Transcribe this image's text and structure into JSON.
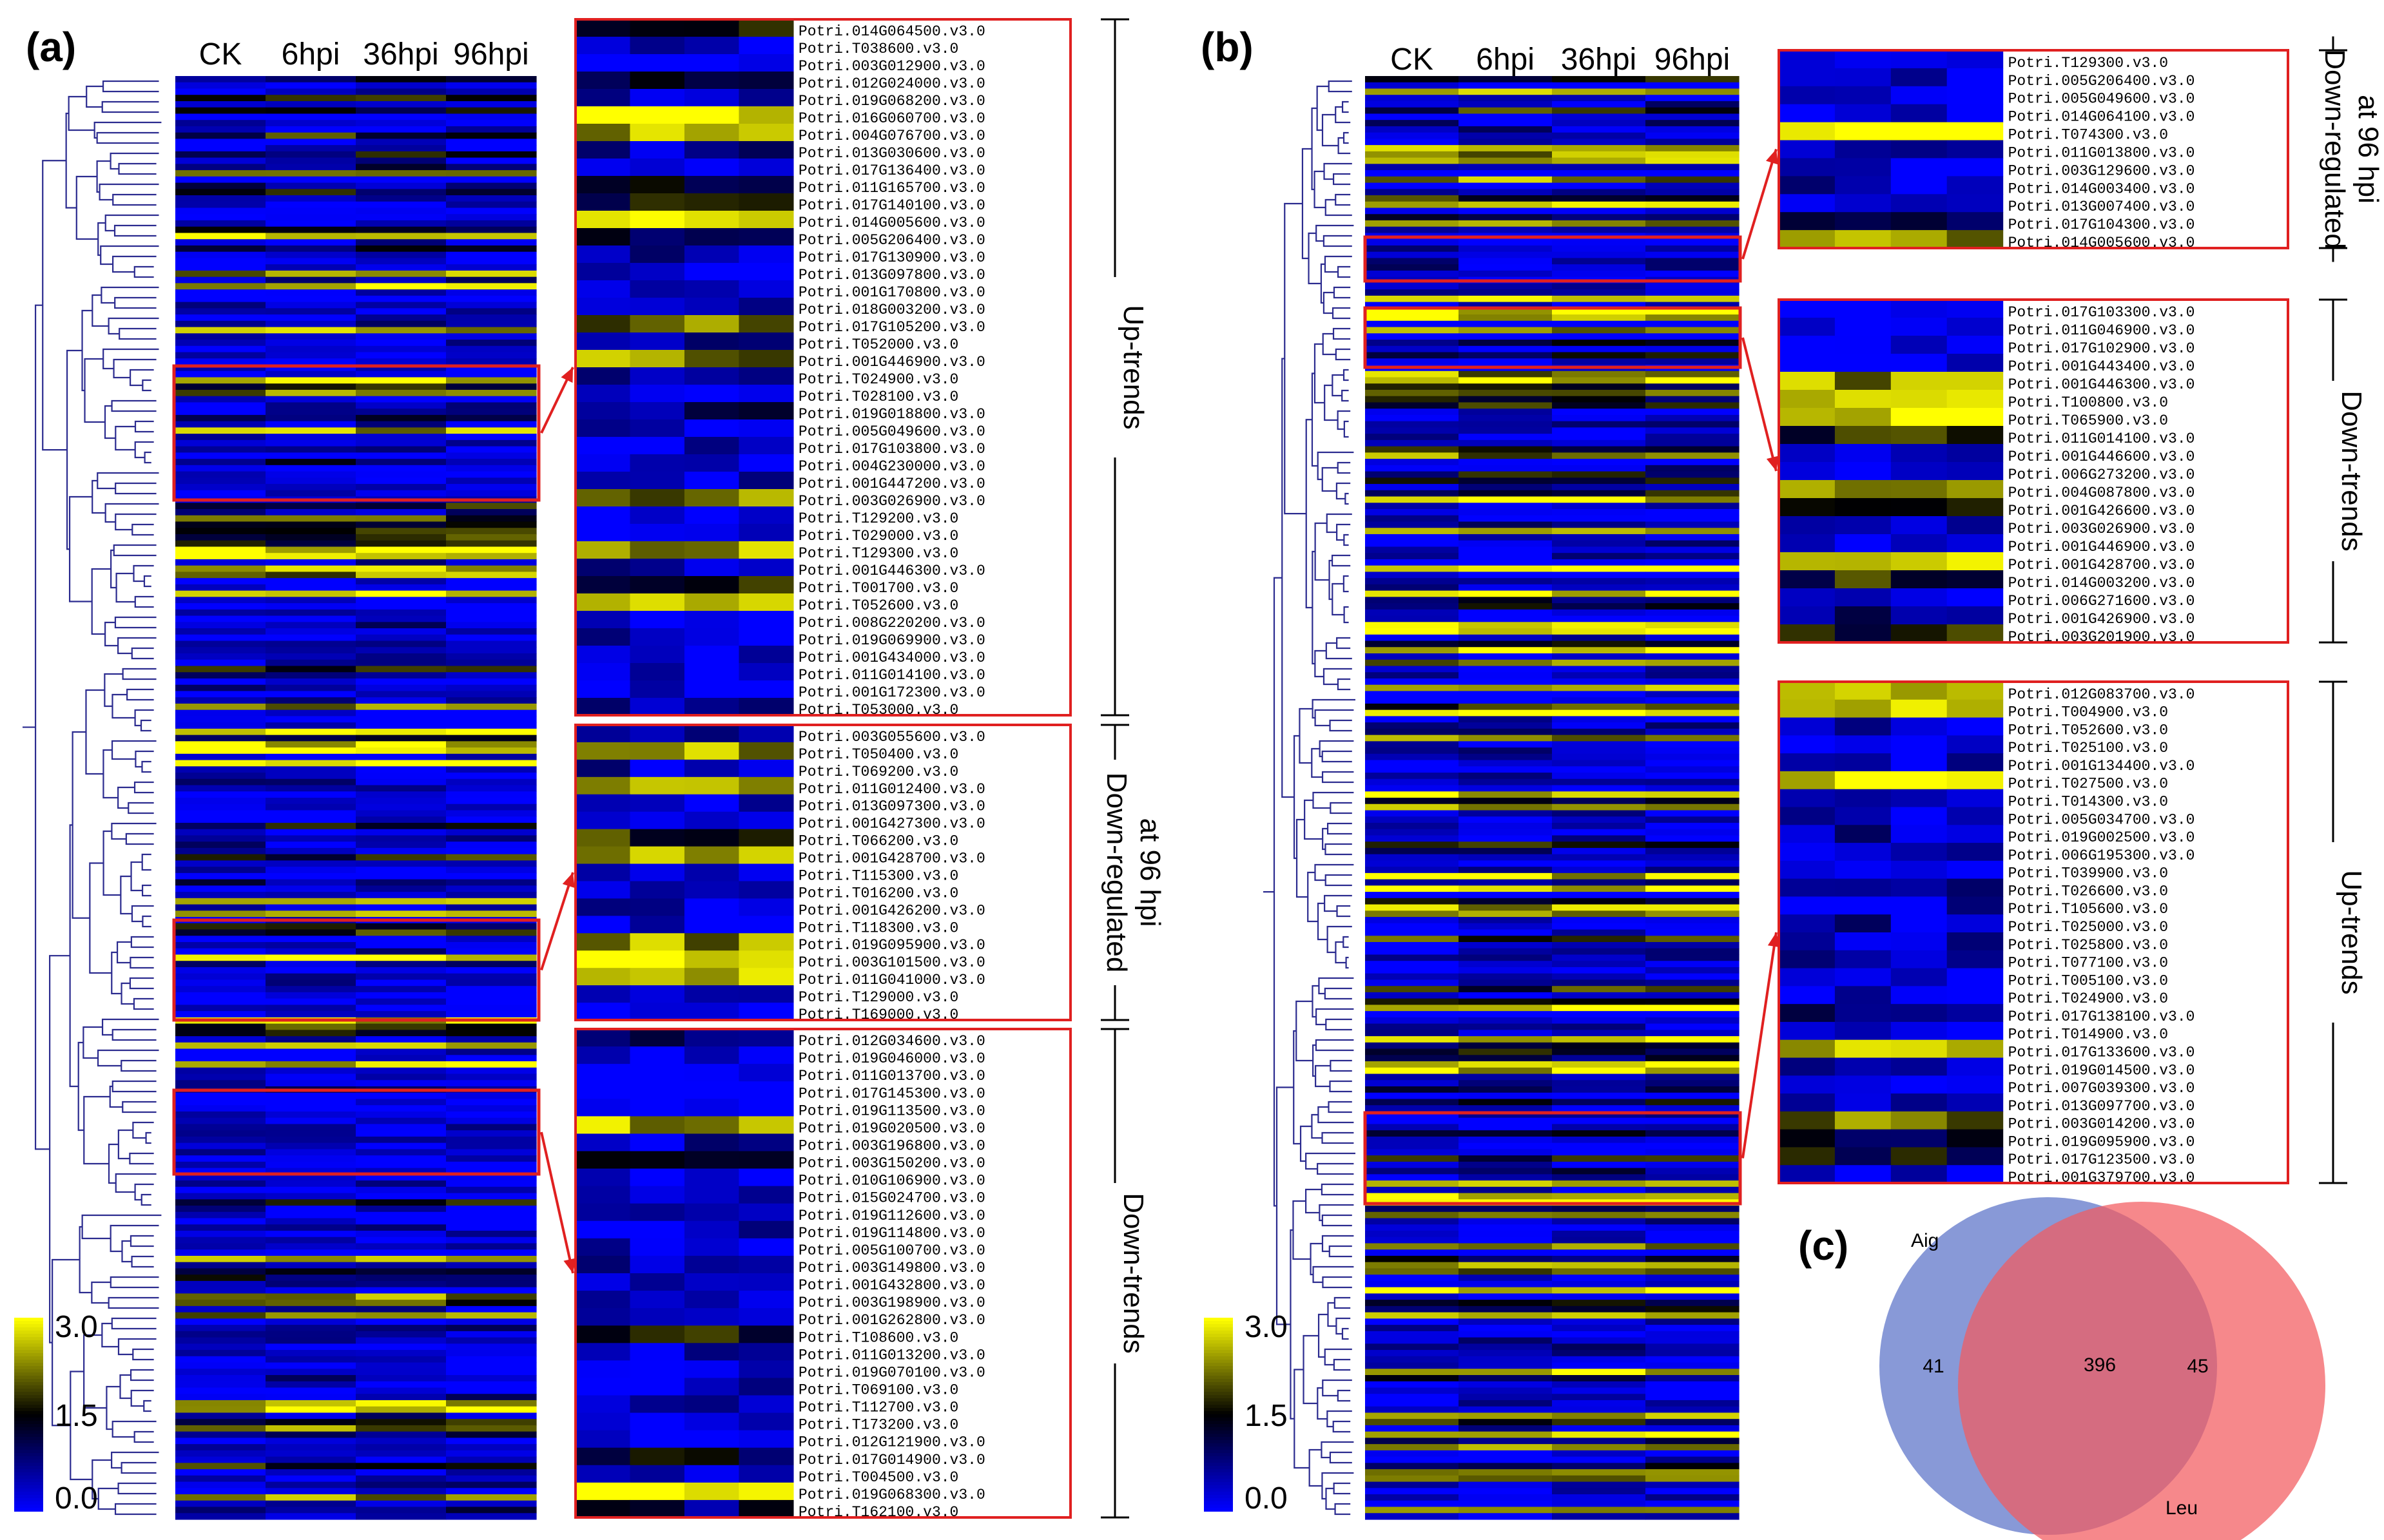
{
  "chart_data": [
    {
      "type": "heatmap",
      "panel": "(a)",
      "columns": [
        "CK",
        "6hpi",
        "36hpi",
        "96hpi"
      ],
      "colorbar": {
        "ticks": [
          "3.0",
          "1.5",
          "0.0"
        ],
        "colors": [
          "#0000ff",
          "#000000",
          "#ffff00"
        ]
      },
      "zooms": [
        {
          "label": "Up-trends",
          "genes": [
            "Potri.014G064500.v3.0",
            "Potri.T038600.v3.0",
            "Potri.003G012900.v3.0",
            "Potri.012G024000.v3.0",
            "Potri.019G068200.v3.0",
            "Potri.016G060700.v3.0",
            "Potri.004G076700.v3.0",
            "Potri.013G030600.v3.0",
            "Potri.017G136400.v3.0",
            "Potri.011G165700.v3.0",
            "Potri.017G140100.v3.0",
            "Potri.014G005600.v3.0",
            "Potri.005G206400.v3.0",
            "Potri.017G130900.v3.0",
            "Potri.013G097800.v3.0",
            "Potri.001G170800.v3.0",
            "Potri.018G003200.v3.0",
            "Potri.017G105200.v3.0",
            "Potri.T052000.v3.0",
            "Potri.001G446900.v3.0",
            "Potri.T024900.v3.0",
            "Potri.T028100.v3.0",
            "Potri.019G018800.v3.0",
            "Potri.005G049600.v3.0",
            "Potri.017G103800.v3.0",
            "Potri.004G230000.v3.0",
            "Potri.001G447200.v3.0",
            "Potri.003G026900.v3.0",
            "Potri.T129200.v3.0",
            "Potri.T029000.v3.0",
            "Potri.T129300.v3.0",
            "Potri.001G446300.v3.0",
            "Potri.T001700.v3.0",
            "Potri.T052600.v3.0",
            "Potri.008G220200.v3.0",
            "Potri.019G069900.v3.0",
            "Potri.001G434000.v3.0",
            "Potri.011G014100.v3.0",
            "Potri.001G172300.v3.0",
            "Potri.T053000.v3.0"
          ]
        },
        {
          "label": "Down-regulated at 96 hpi",
          "label_lines": [
            "Down-regulated",
            "at 96 hpi"
          ],
          "genes": [
            "Potri.003G055600.v3.0",
            "Potri.T050400.v3.0",
            "Potri.T069200.v3.0",
            "Potri.011G012400.v3.0",
            "Potri.013G097300.v3.0",
            "Potri.001G427300.v3.0",
            "Potri.T066200.v3.0",
            "Potri.001G428700.v3.0",
            "Potri.T115300.v3.0",
            "Potri.T016200.v3.0",
            "Potri.001G426200.v3.0",
            "Potri.T118300.v3.0",
            "Potri.019G095900.v3.0",
            "Potri.003G101500.v3.0",
            "Potri.011G041000.v3.0",
            "Potri.T129000.v3.0",
            "Potri.T169000.v3.0"
          ]
        },
        {
          "label": "Down-trends",
          "genes": [
            "Potri.012G034600.v3.0",
            "Potri.019G046000.v3.0",
            "Potri.011G013700.v3.0",
            "Potri.017G145300.v3.0",
            "Potri.019G113500.v3.0",
            "Potri.019G020500.v3.0",
            "Potri.003G196800.v3.0",
            "Potri.003G150200.v3.0",
            "Potri.010G106900.v3.0",
            "Potri.015G024700.v3.0",
            "Potri.019G112600.v3.0",
            "Potri.019G114800.v3.0",
            "Potri.005G100700.v3.0",
            "Potri.003G149800.v3.0",
            "Potri.001G432800.v3.0",
            "Potri.003G198900.v3.0",
            "Potri.001G262800.v3.0",
            "Potri.T108600.v3.0",
            "Potri.011G013200.v3.0",
            "Potri.019G070100.v3.0",
            "Potri.T069100.v3.0",
            "Potri.T112700.v3.0",
            "Potri.T173200.v3.0",
            "Potri.012G121900.v3.0",
            "Potri.017G014900.v3.0",
            "Potri.T004500.v3.0",
            "Potri.019G068300.v3.0",
            "Potri.T162100.v3.0"
          ]
        }
      ]
    },
    {
      "type": "heatmap",
      "panel": "(b)",
      "columns": [
        "CK",
        "6hpi",
        "36hpi",
        "96hpi"
      ],
      "colorbar": {
        "ticks": [
          "3.0",
          "1.5",
          "0.0"
        ],
        "colors": [
          "#0000ff",
          "#000000",
          "#ffff00"
        ]
      },
      "zooms": [
        {
          "label": "Down-regulated at 96 hpi",
          "label_lines": [
            "Down-regulated",
            "at 96 hpi"
          ],
          "genes": [
            "Potri.T129300.v3.0",
            "Potri.005G206400.v3.0",
            "Potri.005G049600.v3.0",
            "Potri.014G064100.v3.0",
            "Potri.T074300.v3.0",
            "Potri.011G013800.v3.0",
            "Potri.003G129600.v3.0",
            "Potri.014G003400.v3.0",
            "Potri.013G007400.v3.0",
            "Potri.017G104300.v3.0",
            "Potri.014G005600.v3.0"
          ]
        },
        {
          "label": "Down-trends",
          "genes": [
            "Potri.017G103300.v3.0",
            "Potri.011G046900.v3.0",
            "Potri.017G102900.v3.0",
            "Potri.001G443400.v3.0",
            "Potri.001G446300.v3.0",
            "Potri.T100800.v3.0",
            "Potri.T065900.v3.0",
            "Potri.011G014100.v3.0",
            "Potri.001G446600.v3.0",
            "Potri.006G273200.v3.0",
            "Potri.004G087800.v3.0",
            "Potri.001G426600.v3.0",
            "Potri.003G026900.v3.0",
            "Potri.001G446900.v3.0",
            "Potri.001G428700.v3.0",
            "Potri.014G003200.v3.0",
            "Potri.006G271600.v3.0",
            "Potri.001G426900.v3.0",
            "Potri.003G201900.v3.0"
          ]
        },
        {
          "label": "Up-trends",
          "genes": [
            "Potri.012G083700.v3.0",
            "Potri.T004900.v3.0",
            "Potri.T052600.v3.0",
            "Potri.T025100.v3.0",
            "Potri.001G134400.v3.0",
            "Potri.T027500.v3.0",
            "Potri.T014300.v3.0",
            "Potri.005G034700.v3.0",
            "Potri.019G002500.v3.0",
            "Potri.006G195300.v3.0",
            "Potri.T039900.v3.0",
            "Potri.T026600.v3.0",
            "Potri.T105600.v3.0",
            "Potri.T025000.v3.0",
            "Potri.T025800.v3.0",
            "Potri.T077100.v3.0",
            "Potri.T005100.v3.0",
            "Potri.T024900.v3.0",
            "Potri.017G138100.v3.0",
            "Potri.T014900.v3.0",
            "Potri.017G133600.v3.0",
            "Potri.019G014500.v3.0",
            "Potri.007G039300.v3.0",
            "Potri.013G097700.v3.0",
            "Potri.003G014200.v3.0",
            "Potri.019G095900.v3.0",
            "Potri.017G123500.v3.0",
            "Potri.001G379700.v3.0"
          ]
        }
      ]
    },
    {
      "type": "venn",
      "panel": "(c)",
      "sets": [
        {
          "name": "Aig",
          "only": 41,
          "color": "#5a72c8"
        },
        {
          "name": "Leu",
          "only": 45,
          "color": "#f25a5e"
        }
      ],
      "intersection": 396
    }
  ]
}
